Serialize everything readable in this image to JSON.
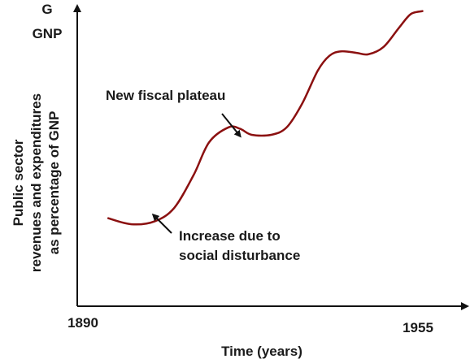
{
  "chart_data": {
    "type": "line",
    "y_axis_top_label_line1": "G",
    "y_axis_top_label_line2": "GNP",
    "ylabel_line1": "Public sector",
    "ylabel_line2": "revenues and expenditures",
    "ylabel_line3": "as percentage of GNP",
    "xlabel": "Time (years)",
    "x_tick_labels": [
      "1890",
      "1955"
    ],
    "series": [
      {
        "x": [
          0.08,
          0.14,
          0.2,
          0.25,
          0.3,
          0.34,
          0.39,
          0.42,
          0.45,
          0.5,
          0.54,
          0.58,
          0.62,
          0.65,
          0.68,
          0.72,
          0.75,
          0.79,
          0.83,
          0.86,
          0.89
        ],
        "y": [
          0.295,
          0.275,
          0.285,
          0.33,
          0.44,
          0.55,
          0.6,
          0.595,
          0.575,
          0.575,
          0.6,
          0.68,
          0.79,
          0.84,
          0.855,
          0.85,
          0.845,
          0.87,
          0.935,
          0.98,
          0.99
        ]
      }
    ],
    "annotations": [
      {
        "text": "New fiscal plateau"
      },
      {
        "text_line1": "Increase due to",
        "text_line2": "social disturbance"
      }
    ],
    "grid": false,
    "legend": "none",
    "line_color": "#8b1010"
  }
}
